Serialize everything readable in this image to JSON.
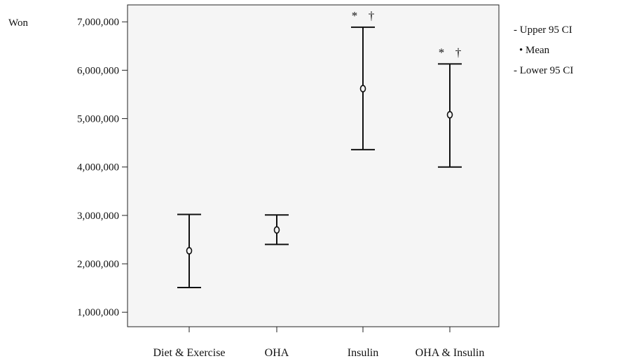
{
  "chart_data": {
    "type": "errorbar",
    "y_unit_label": "Won",
    "ylim": [
      700000,
      7350000
    ],
    "y_ticks": [
      1000000,
      2000000,
      3000000,
      4000000,
      5000000,
      6000000,
      7000000
    ],
    "y_tick_labels": [
      "1,000,000",
      "2,000,000",
      "3,000,000",
      "4,000,000",
      "5,000,000",
      "6,000,000",
      "7,000,000"
    ],
    "categories": [
      "Diet & Exercise",
      "OHA",
      "Insulin",
      "OHA & Insulin"
    ],
    "series": [
      {
        "mean": [
          2270000,
          2700000,
          5620000,
          5080000
        ],
        "upper": [
          3020000,
          3010000,
          6890000,
          6130000
        ],
        "lower": [
          1510000,
          2400000,
          4360000,
          4000000
        ]
      }
    ],
    "significance_marks": [
      {
        "category": "Insulin",
        "symbols": [
          "*",
          "†"
        ]
      },
      {
        "category": "OHA & Insulin",
        "symbols": [
          "*",
          "†"
        ]
      }
    ],
    "legend": [
      "- Upper 95 CI",
      "• Mean",
      "- Lower 95 CI"
    ],
    "legend_position": "top-right",
    "grid": false
  }
}
